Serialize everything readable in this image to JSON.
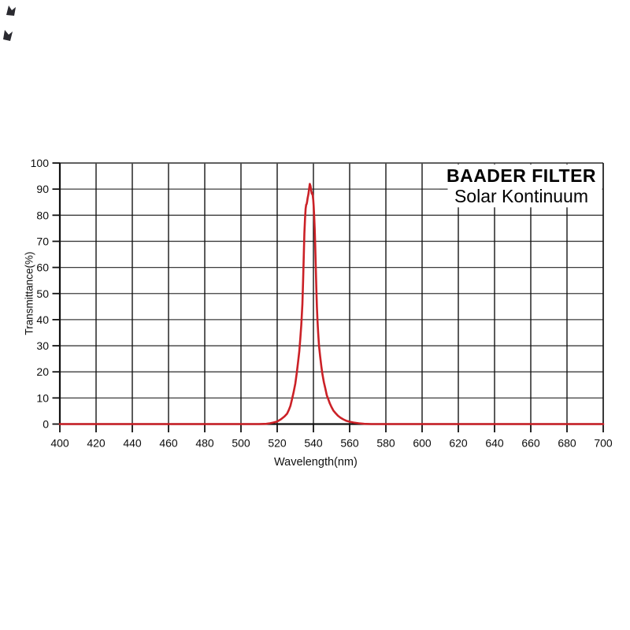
{
  "title_box": {
    "line1": "BAADER FILTER",
    "line2": "Solar Kontinuum"
  },
  "chart_data": {
    "type": "line",
    "title": "BAADER FILTER",
    "subtitle": "Solar Kontinuum",
    "xlabel": "Wavelength(nm)",
    "ylabel": "Transmittance(%)",
    "xlim": [
      400,
      700
    ],
    "ylim": [
      0,
      100
    ],
    "x_ticks": [
      400,
      420,
      440,
      460,
      480,
      500,
      520,
      540,
      560,
      580,
      600,
      620,
      640,
      660,
      680,
      700
    ],
    "y_ticks": [
      0,
      10,
      20,
      30,
      40,
      50,
      60,
      70,
      80,
      90,
      100
    ],
    "grid": true,
    "legend": "none",
    "peak": {
      "wavelength_nm": 538,
      "transmittance_pct": 92,
      "fwhm_nm": 8
    },
    "series": [
      {
        "name": "transmittance",
        "color": "#cb2127",
        "points": [
          [
            400,
            0
          ],
          [
            440,
            0
          ],
          [
            480,
            0
          ],
          [
            505,
            0
          ],
          [
            510,
            0
          ],
          [
            514,
            0.1
          ],
          [
            516,
            0.3
          ],
          [
            518,
            0.6
          ],
          [
            520,
            1
          ],
          [
            522,
            1.8
          ],
          [
            524,
            2.9
          ],
          [
            525.5,
            4
          ],
          [
            526.5,
            5.5
          ],
          [
            527.3,
            7
          ],
          [
            528,
            9
          ],
          [
            529,
            12
          ],
          [
            530,
            15.5
          ],
          [
            530.8,
            19.5
          ],
          [
            531.5,
            23.5
          ],
          [
            532.2,
            28
          ],
          [
            532.8,
            33
          ],
          [
            533.3,
            38
          ],
          [
            533.9,
            46
          ],
          [
            534.3,
            55
          ],
          [
            534.7,
            65
          ],
          [
            535,
            73
          ],
          [
            535.4,
            79
          ],
          [
            535.7,
            82.5
          ],
          [
            536,
            84
          ],
          [
            536.2,
            84.2
          ],
          [
            536.5,
            85
          ],
          [
            536.8,
            86.5
          ],
          [
            537.2,
            88
          ],
          [
            537.6,
            90
          ],
          [
            538,
            92
          ],
          [
            538.4,
            91.2
          ],
          [
            538.8,
            89.5
          ],
          [
            539.1,
            88.2
          ],
          [
            539.35,
            88.6
          ],
          [
            539.6,
            87.6
          ],
          [
            539.9,
            85.8
          ],
          [
            540.15,
            83.5
          ],
          [
            540.4,
            80
          ],
          [
            540.7,
            75
          ],
          [
            541,
            68
          ],
          [
            541.3,
            60
          ],
          [
            541.6,
            52
          ],
          [
            541.9,
            45
          ],
          [
            542.2,
            40
          ],
          [
            542.6,
            35
          ],
          [
            543.1,
            30
          ],
          [
            543.7,
            26
          ],
          [
            544.4,
            22
          ],
          [
            545,
            19
          ],
          [
            545.8,
            16
          ],
          [
            546.6,
            13.5
          ],
          [
            547.4,
            11
          ],
          [
            548.2,
            9.5
          ],
          [
            549,
            8
          ],
          [
            550,
            6.5
          ],
          [
            551,
            5.2
          ],
          [
            552.2,
            4.2
          ],
          [
            553.5,
            3.2
          ],
          [
            555,
            2.4
          ],
          [
            556.5,
            1.8
          ],
          [
            558,
            1.3
          ],
          [
            560,
            0.9
          ],
          [
            562,
            0.6
          ],
          [
            565,
            0.3
          ],
          [
            568,
            0.1
          ],
          [
            572,
            0
          ],
          [
            580,
            0
          ],
          [
            600,
            0
          ],
          [
            620,
            0
          ],
          [
            650,
            0
          ],
          [
            680,
            0
          ],
          [
            700,
            0
          ]
        ]
      }
    ]
  },
  "colors": {
    "background": "#ffffff",
    "curve": "#cb2127",
    "grid_horizontal": "#3d3d3d",
    "grid_vertical": "#161616",
    "axis": "#111111",
    "text": "#000000"
  },
  "decorations": {
    "corner_marks": "two small dark marks, top-left"
  }
}
